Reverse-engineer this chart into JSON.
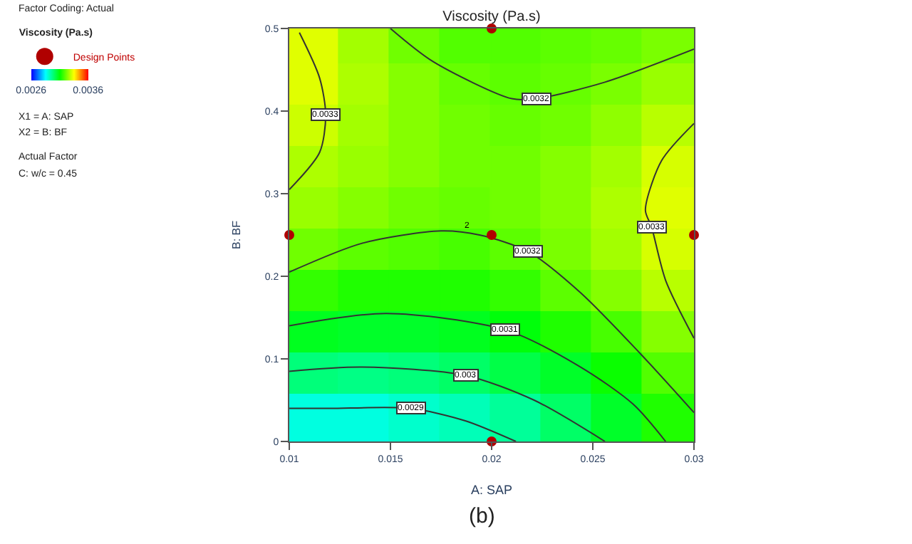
{
  "chart_data": {
    "type": "line",
    "title": "Viscosity (Pa.s)",
    "xlabel": "A: SAP",
    "ylabel": "B: BF",
    "legend_title": "Viscosity (Pa.s)",
    "clim": [
      0.0026,
      0.0036
    ],
    "cticks": [
      0.0026,
      0.0036
    ],
    "xlim": [
      0.01,
      0.03
    ],
    "xticks": [
      0.01,
      0.015,
      0.02,
      0.025,
      0.03
    ],
    "ylim": [
      0,
      0.5
    ],
    "yticks": [
      0,
      0.1,
      0.2,
      0.3,
      0.4,
      0.5
    ],
    "series": [
      {
        "type": "scatter",
        "marker": "square",
        "colors": [
          "#e0ff00",
          "#a3ff00",
          "#70ff00",
          "#52ff00",
          "#52ff00",
          "#5cff00",
          "#66ff00",
          "#7aff00",
          "#e0ff00",
          "#adff00",
          "#85ff00",
          "#66ff00",
          "#5cff00",
          "#66ff00",
          "#7aff00",
          "#99ff00",
          "#ccff00",
          "#a3ff00",
          "#85ff00",
          "#70ff00",
          "#66ff00",
          "#70ff00",
          "#8fff00",
          "#b8ff00",
          "#adff00",
          "#99ff00",
          "#85ff00",
          "#70ff00",
          "#70ff00",
          "#85ff00",
          "#a3ff00",
          "#d6ff00",
          "#99ff00",
          "#85ff00",
          "#70ff00",
          "#66ff00",
          "#70ff00",
          "#85ff00",
          "#adff00",
          "#e0ff00",
          "#70ff00",
          "#5cff00",
          "#52ff00",
          "#47ff00",
          "#5cff00",
          "#7aff00",
          "#a3ff00",
          "#d6ff00",
          "#33ff00",
          "#1fff00",
          "#1fff00",
          "#1fff00",
          "#33ff00",
          "#5cff00",
          "#85ff00",
          "#b8ff00",
          "#00ff1f",
          "#00ff29",
          "#00ff29",
          "#00ff1f",
          "#00ff0a",
          "#1fff00",
          "#47ff00",
          "#85ff00",
          "#00ff7a",
          "#00ff85",
          "#00ff7a",
          "#00ff66",
          "#00ff47",
          "#00ff29",
          "#0aff00",
          "#52ff00",
          "#00ffe0",
          "#00ffe0",
          "#00ffcc",
          "#00ffb8",
          "#00ff99",
          "#00ff66",
          "#00ff29",
          "#1fff00"
        ],
        "x": [
          0.01125,
          0.01375,
          0.01625,
          0.01875,
          0.02125,
          0.02375,
          0.02625,
          0.02875,
          0.01125,
          0.01375,
          0.01625,
          0.01875,
          0.02125,
          0.02375,
          0.02625,
          0.02875,
          0.01125,
          0.01375,
          0.01625,
          0.01875,
          0.02125,
          0.02375,
          0.02625,
          0.02875,
          0.01125,
          0.01375,
          0.01625,
          0.01875,
          0.02125,
          0.02375,
          0.02625,
          0.02875,
          0.01125,
          0.01375,
          0.01625,
          0.01875,
          0.02125,
          0.02375,
          0.02625,
          0.02875,
          0.01125,
          0.01375,
          0.01625,
          0.01875,
          0.02125,
          0.02375,
          0.02625,
          0.02875,
          0.01125,
          0.01375,
          0.01625,
          0.01875,
          0.02125,
          0.02375,
          0.02625,
          0.02875,
          0.01125,
          0.01375,
          0.01625,
          0.01875,
          0.02125,
          0.02375,
          0.02625,
          0.02875,
          0.01125,
          0.01375,
          0.01625,
          0.01875,
          0.02125,
          0.02375,
          0.02625,
          0.02875,
          0.01125,
          0.01375,
          0.01625,
          0.01875,
          0.02125,
          0.02375,
          0.02625,
          0.02875
        ],
        "values": [
          0.475,
          0.475,
          0.475,
          0.475,
          0.475,
          0.475,
          0.475,
          0.475,
          0.425,
          0.425,
          0.425,
          0.425,
          0.425,
          0.425,
          0.425,
          0.425,
          0.375,
          0.375,
          0.375,
          0.375,
          0.375,
          0.375,
          0.375,
          0.375,
          0.325,
          0.325,
          0.325,
          0.325,
          0.325,
          0.325,
          0.325,
          0.325,
          0.275,
          0.275,
          0.275,
          0.275,
          0.275,
          0.275,
          0.275,
          0.275,
          0.225,
          0.225,
          0.225,
          0.225,
          0.225,
          0.225,
          0.225,
          0.225,
          0.175,
          0.175,
          0.175,
          0.175,
          0.175,
          0.175,
          0.175,
          0.175,
          0.125,
          0.125,
          0.125,
          0.125,
          0.125,
          0.125,
          0.125,
          0.125,
          0.075,
          0.075,
          0.075,
          0.075,
          0.075,
          0.075,
          0.075,
          0.075,
          0.025,
          0.025,
          0.025,
          0.025,
          0.025,
          0.025,
          0.025,
          0.025
        ],
        "cvalues": [
          0.00332,
          0.00326,
          0.00321,
          0.00318,
          0.00318,
          0.00319,
          0.0032,
          0.00322,
          0.00332,
          0.00327,
          0.00323,
          0.0032,
          0.00319,
          0.0032,
          0.00322,
          0.00325,
          0.0033,
          0.00326,
          0.00323,
          0.00321,
          0.0032,
          0.00321,
          0.00324,
          0.00328,
          0.00327,
          0.00325,
          0.00323,
          0.00321,
          0.00321,
          0.00323,
          0.00326,
          0.00331,
          0.00325,
          0.00323,
          0.00321,
          0.0032,
          0.00321,
          0.00323,
          0.00327,
          0.00332,
          0.00321,
          0.00319,
          0.00318,
          0.00317,
          0.00319,
          0.00322,
          0.00326,
          0.00331,
          0.00315,
          0.00313,
          0.00313,
          0.00313,
          0.00315,
          0.00319,
          0.00323,
          0.00328,
          0.00307,
          0.00306,
          0.00306,
          0.00307,
          0.00309,
          0.00313,
          0.00317,
          0.00323,
          0.00298,
          0.00297,
          0.00298,
          0.003,
          0.00303,
          0.00306,
          0.00311,
          0.00318,
          0.00288,
          0.00288,
          0.0029,
          0.00292,
          0.00295,
          0.003,
          0.00306,
          0.00313
        ]
      },
      {
        "color": "#333333",
        "x": [
          0.01,
          0.012,
          0.016,
          0.0187,
          0.0212
        ],
        "values": [
          0.04,
          0.04,
          0.04,
          0.025,
          0
        ]
      },
      {
        "color": "#333333",
        "x": [
          0.01,
          0.0136,
          0.0187,
          0.0221,
          0.0256
        ],
        "values": [
          0.085,
          0.09,
          0.08,
          0.05,
          0
        ]
      },
      {
        "color": "#333333",
        "x": [
          0.01,
          0.0148,
          0.0207,
          0.0244,
          0.027,
          0.0286
        ],
        "values": [
          0.14,
          0.155,
          0.135,
          0.09,
          0.045,
          0
        ]
      },
      {
        "color": "#333333",
        "x": [
          0.01,
          0.0136,
          0.0175,
          0.0194,
          0.0218,
          0.0244,
          0.0274,
          0.03
        ],
        "values": [
          0.205,
          0.24,
          0.255,
          0.25,
          0.23,
          0.18,
          0.105,
          0.035
        ]
      },
      {
        "color": "#333333",
        "x": [
          0.015,
          0.0171,
          0.021,
          0.0222,
          0.0256,
          0.03
        ],
        "values": [
          0.5,
          0.46,
          0.415,
          0.415,
          0.435,
          0.475
        ]
      },
      {
        "color": "#333333",
        "x": [
          0.0105,
          0.0115,
          0.0118,
          0.0115,
          0.01
        ],
        "values": [
          0.495,
          0.44,
          0.395,
          0.35,
          0.305
        ]
      },
      {
        "color": "#333333",
        "x": [
          0.03,
          0.0284,
          0.0276,
          0.0279,
          0.0286,
          0.03
        ],
        "values": [
          0.385,
          0.34,
          0.28,
          0.26,
          0.195,
          0.125
        ]
      },
      {
        "name": "Design Points",
        "type": "scatter",
        "marker": "circle",
        "color": "#b00000",
        "x": [
          0.01,
          0.02,
          0.02,
          0.03,
          0.02
        ],
        "values": [
          0.25,
          0.5,
          0.25,
          0.25,
          0
        ]
      }
    ],
    "legend": "top left",
    "annotations": [
      "Factor Coding: Actual",
      "X1 = A: SAP",
      "X2 = B: BF",
      "Actual Factor",
      "C: w/c = 0.45",
      "(b)",
      {
        "text": "0.0033",
        "x": 0.0118,
        "y": 0.395
      },
      {
        "text": "0.0032",
        "x": 0.0222,
        "y": 0.415
      },
      {
        "text": "0.0033",
        "x": 0.0279,
        "y": 0.26
      },
      {
        "text": "0.0032",
        "x": 0.0218,
        "y": 0.23
      },
      {
        "text": "0.0031",
        "x": 0.0207,
        "y": 0.135
      },
      {
        "text": "0.003",
        "x": 0.0187,
        "y": 0.08
      },
      {
        "text": "0.0029",
        "x": 0.016,
        "y": 0.04
      },
      {
        "text": "2",
        "x": 0.0194,
        "y": 0.255
      }
    ]
  }
}
